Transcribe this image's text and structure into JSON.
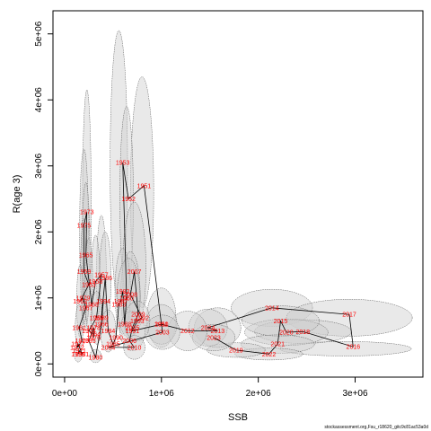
{
  "chart_data": {
    "type": "scatter",
    "title": "",
    "xlabel": "SSB",
    "ylabel": "R(age 3)",
    "xlim": [
      -120000,
      3700000
    ],
    "ylim": [
      -200000,
      5350000
    ],
    "xticks": [
      0,
      1000000,
      2000000,
      3000000
    ],
    "xtick_labels": [
      "0e+00",
      "1e+06",
      "2e+06",
      "3e+06"
    ],
    "yticks": [
      0,
      1000000,
      2000000,
      3000000,
      4000000,
      5000000
    ],
    "ytick_labels": [
      "0e+00",
      "1e+06",
      "2e+06",
      "3e+06",
      "4e+06",
      "5e+06"
    ],
    "grid": false,
    "legend": "none",
    "colors": {
      "line": "#000000",
      "label": "#ff0000",
      "ellipse_fill": "#cfcfcf",
      "ellipse_stroke": "#555555"
    },
    "points": [
      {
        "year": "1950",
        "ssb": 1000000,
        "r": 600000
      },
      {
        "year": "1951",
        "ssb": 820000,
        "r": 2700000
      },
      {
        "year": "1952",
        "ssb": 660000,
        "r": 2500000
      },
      {
        "year": "1953",
        "ssb": 600000,
        "r": 3050000
      },
      {
        "year": "1955",
        "ssb": 140000,
        "r": 150000
      },
      {
        "year": "1957",
        "ssb": 380000,
        "r": 1350000
      },
      {
        "year": "1958",
        "ssb": 320000,
        "r": 1250000
      },
      {
        "year": "1959",
        "ssb": 200000,
        "r": 1400000
      },
      {
        "year": "1960",
        "ssb": 640000,
        "r": 1000000
      },
      {
        "year": "1961",
        "ssb": 150000,
        "r": 550000
      },
      {
        "year": "1962",
        "ssb": 160000,
        "r": 950000
      },
      {
        "year": "1963",
        "ssb": 250000,
        "r": 1200000
      },
      {
        "year": "1964",
        "ssb": 300000,
        "r": 450000
      },
      {
        "year": "1965",
        "ssb": 220000,
        "r": 1650000
      },
      {
        "year": "1966",
        "ssb": 380000,
        "r": 600000
      },
      {
        "year": "1967",
        "ssb": 220000,
        "r": 850000
      },
      {
        "year": "1968",
        "ssb": 280000,
        "r": 900000
      },
      {
        "year": "1969",
        "ssb": 330000,
        "r": 700000
      },
      {
        "year": "1970",
        "ssb": 180000,
        "r": 350000
      },
      {
        "year": "1971",
        "ssb": 150000,
        "r": 200000
      },
      {
        "year": "1972",
        "ssb": 130000,
        "r": 250000
      },
      {
        "year": "1973",
        "ssb": 230000,
        "r": 2300000
      },
      {
        "year": "1974",
        "ssb": 250000,
        "r": 500000
      },
      {
        "year": "1975",
        "ssb": 200000,
        "r": 2100000
      },
      {
        "year": "1976",
        "ssb": 300000,
        "r": 400000
      },
      {
        "year": "1977",
        "ssb": 140000,
        "r": 300000
      },
      {
        "year": "1978",
        "ssb": 300000,
        "r": 550000
      },
      {
        "year": "1979",
        "ssb": 190000,
        "r": 1000000
      },
      {
        "year": "1980",
        "ssb": 320000,
        "r": 100000
      },
      {
        "year": "1981",
        "ssb": 180000,
        "r": 150000
      },
      {
        "year": "1982",
        "ssb": 600000,
        "r": 1100000
      },
      {
        "year": "1983",
        "ssb": 560000,
        "r": 900000
      },
      {
        "year": "1984",
        "ssb": 450000,
        "r": 500000
      },
      {
        "year": "1985",
        "ssb": 500000,
        "r": 300000
      },
      {
        "year": "1986",
        "ssb": 420000,
        "r": 1300000
      },
      {
        "year": "1987",
        "ssb": 580000,
        "r": 950000
      },
      {
        "year": "1988",
        "ssb": 620000,
        "r": 600000
      },
      {
        "year": "1989",
        "ssb": 380000,
        "r": 700000
      },
      {
        "year": "1990",
        "ssb": 530000,
        "r": 400000
      },
      {
        "year": "1991",
        "ssb": 700000,
        "r": 500000
      },
      {
        "year": "1992",
        "ssb": 800000,
        "r": 700000
      },
      {
        "year": "1993",
        "ssb": 750000,
        "r": 650000
      },
      {
        "year": "1994",
        "ssb": 400000,
        "r": 950000
      },
      {
        "year": "1995",
        "ssb": 250000,
        "r": 350000
      },
      {
        "year": "2003",
        "ssb": 1010000,
        "r": 480000
      },
      {
        "year": "2004",
        "ssb": 450000,
        "r": 250000
      },
      {
        "year": "2005",
        "ssb": 700000,
        "r": 550000
      },
      {
        "year": "2006",
        "ssb": 670000,
        "r": 350000
      },
      {
        "year": "2007",
        "ssb": 720000,
        "r": 1400000
      },
      {
        "year": "2008",
        "ssb": 680000,
        "r": 1050000
      },
      {
        "year": "2009",
        "ssb": 760000,
        "r": 750000
      },
      {
        "year": "2010",
        "ssb": 720000,
        "r": 250000
      },
      {
        "year": "2011",
        "ssb": 1000000,
        "r": 600000
      },
      {
        "year": "2012",
        "ssb": 1270000,
        "r": 500000
      },
      {
        "year": "2013",
        "ssb": 1580000,
        "r": 500000
      },
      {
        "year": "2014",
        "ssb": 2140000,
        "r": 850000
      },
      {
        "year": "2015",
        "ssb": 2230000,
        "r": 650000
      },
      {
        "year": "2016",
        "ssb": 2980000,
        "r": 260000
      },
      {
        "year": "2017",
        "ssb": 2940000,
        "r": 750000
      },
      {
        "year": "2018",
        "ssb": 2460000,
        "r": 490000
      },
      {
        "year": "2019",
        "ssb": 1770000,
        "r": 210000
      },
      {
        "year": "2020",
        "ssb": 2290000,
        "r": 480000
      },
      {
        "year": "2021",
        "ssb": 2200000,
        "r": 300000
      },
      {
        "year": "2022",
        "ssb": 2110000,
        "r": 150000
      },
      {
        "year": "2023",
        "ssb": 1540000,
        "r": 400000
      },
      {
        "year": "2024",
        "ssb": 1480000,
        "r": 550000
      }
    ],
    "path_order": [
      "1955",
      "1971",
      "1981",
      "1977",
      "1972",
      "1970",
      "1961",
      "1967",
      "1979",
      "1962",
      "1963",
      "1959",
      "1975",
      "1973",
      "1965",
      "1968",
      "1958",
      "1957",
      "1969",
      "1974",
      "1964",
      "1976",
      "1978",
      "1995",
      "1980",
      "1966",
      "1994",
      "1989",
      "1986",
      "1984",
      "1985",
      "1990",
      "1983",
      "1987",
      "1982",
      "1988",
      "1960",
      "1953",
      "1952",
      "1951",
      "1950",
      "1991",
      "1993",
      "1992",
      "2008",
      "2007",
      "2009",
      "2005",
      "2006",
      "2010",
      "2004",
      "2003",
      "2011",
      "2012",
      "2013",
      "2024",
      "2014",
      "2017",
      "2016",
      "2018",
      "2020",
      "2015",
      "2021",
      "2022",
      "2019",
      "2023"
    ],
    "uncertainty_ellipses": [
      {
        "year": "1953",
        "ssb": 560000,
        "r": 3000000,
        "ssb_halfwidth": 90000,
        "r_halfheight": 2050000
      },
      {
        "year": "1951",
        "ssb": 800000,
        "r": 2600000,
        "ssb_halfwidth": 120000,
        "r_halfheight": 1750000
      },
      {
        "year": "1952",
        "ssb": 640000,
        "r": 2500000,
        "ssb_halfwidth": 70000,
        "r_halfheight": 1400000
      },
      {
        "year": "1973",
        "ssb": 230000,
        "r": 2400000,
        "ssb_halfwidth": 45000,
        "r_halfheight": 1750000
      },
      {
        "year": "1975",
        "ssb": 200000,
        "r": 2000000,
        "ssb_halfwidth": 45000,
        "r_halfheight": 1250000
      },
      {
        "year": "1965",
        "ssb": 220000,
        "r": 1650000,
        "ssb_halfwidth": 40000,
        "r_halfheight": 1100000
      },
      {
        "year": "1959",
        "ssb": 200000,
        "r": 1400000,
        "ssb_halfwidth": 35000,
        "r_halfheight": 800000
      },
      {
        "year": "1957",
        "ssb": 380000,
        "r": 1350000,
        "ssb_halfwidth": 50000,
        "r_halfheight": 900000
      },
      {
        "year": "1958",
        "ssb": 320000,
        "r": 1250000,
        "ssb_halfwidth": 45000,
        "r_halfheight": 700000
      },
      {
        "year": "2007",
        "ssb": 720000,
        "r": 1450000,
        "ssb_halfwidth": 120000,
        "r_halfheight": 1000000
      },
      {
        "year": "2008",
        "ssb": 680000,
        "r": 1050000,
        "ssb_halfwidth": 100000,
        "r_halfheight": 650000
      },
      {
        "year": "1982",
        "ssb": 600000,
        "r": 1100000,
        "ssb_halfwidth": 80000,
        "r_halfheight": 650000
      },
      {
        "year": "1963",
        "ssb": 250000,
        "r": 1200000,
        "ssb_halfwidth": 40000,
        "r_halfheight": 700000
      },
      {
        "year": "1962",
        "ssb": 160000,
        "r": 950000,
        "ssb_halfwidth": 35000,
        "r_halfheight": 550000
      },
      {
        "year": "1986",
        "ssb": 420000,
        "r": 1300000,
        "ssb_halfwidth": 60000,
        "r_halfheight": 700000
      },
      {
        "year": "1960",
        "ssb": 660000,
        "r": 1000000,
        "ssb_halfwidth": 120000,
        "r_halfheight": 600000
      },
      {
        "year": "1950",
        "ssb": 1000000,
        "r": 700000,
        "ssb_halfwidth": 150000,
        "r_halfheight": 450000
      },
      {
        "year": "2014",
        "ssb": 2140000,
        "r": 850000,
        "ssb_halfwidth": 420000,
        "r_halfheight": 280000
      },
      {
        "year": "2017",
        "ssb": 2940000,
        "r": 700000,
        "ssb_halfwidth": 650000,
        "r_halfheight": 280000
      },
      {
        "year": "2016",
        "ssb": 2900000,
        "r": 230000,
        "ssb_halfwidth": 680000,
        "r_halfheight": 110000
      },
      {
        "year": "2018",
        "ssb": 2460000,
        "r": 490000,
        "ssb_halfwidth": 500000,
        "r_halfheight": 180000
      },
      {
        "year": "2020",
        "ssb": 2290000,
        "r": 480000,
        "ssb_halfwidth": 430000,
        "r_halfheight": 200000
      },
      {
        "year": "2015",
        "ssb": 2230000,
        "r": 650000,
        "ssb_halfwidth": 400000,
        "r_halfheight": 230000
      },
      {
        "year": "2021",
        "ssb": 2200000,
        "r": 300000,
        "ssb_halfwidth": 380000,
        "r_halfheight": 140000
      },
      {
        "year": "2022",
        "ssb": 2110000,
        "r": 150000,
        "ssb_halfwidth": 350000,
        "r_halfheight": 90000
      },
      {
        "year": "2019",
        "ssb": 1770000,
        "r": 210000,
        "ssb_halfwidth": 300000,
        "r_halfheight": 110000
      },
      {
        "year": "2013",
        "ssb": 1580000,
        "r": 550000,
        "ssb_halfwidth": 240000,
        "r_halfheight": 300000
      },
      {
        "year": "2024",
        "ssb": 1480000,
        "r": 550000,
        "ssb_halfwidth": 200000,
        "r_halfheight": 280000
      },
      {
        "year": "2023",
        "ssb": 1540000,
        "r": 400000,
        "ssb_halfwidth": 220000,
        "r_halfheight": 200000
      },
      {
        "year": "2012",
        "ssb": 1270000,
        "r": 500000,
        "ssb_halfwidth": 200000,
        "r_halfheight": 300000
      },
      {
        "year": "2011",
        "ssb": 1000000,
        "r": 600000,
        "ssb_halfwidth": 160000,
        "r_halfheight": 300000
      },
      {
        "year": "2003",
        "ssb": 1010000,
        "r": 480000,
        "ssb_halfwidth": 180000,
        "r_halfheight": 260000
      },
      {
        "year": "1991",
        "ssb": 700000,
        "r": 500000,
        "ssb_halfwidth": 130000,
        "r_halfheight": 300000
      },
      {
        "year": "1993",
        "ssb": 750000,
        "r": 650000,
        "ssb_halfwidth": 130000,
        "r_halfheight": 300000
      },
      {
        "year": "2010",
        "ssb": 720000,
        "r": 250000,
        "ssb_halfwidth": 110000,
        "r_halfheight": 180000
      },
      {
        "year": "1984",
        "ssb": 450000,
        "r": 500000,
        "ssb_halfwidth": 80000,
        "r_halfheight": 320000
      },
      {
        "year": "1969",
        "ssb": 330000,
        "r": 700000,
        "ssb_halfwidth": 60000,
        "r_halfheight": 400000
      },
      {
        "year": "1961",
        "ssb": 150000,
        "r": 550000,
        "ssb_halfwidth": 40000,
        "r_halfheight": 350000
      },
      {
        "year": "1955",
        "ssb": 140000,
        "r": 150000,
        "ssb_halfwidth": 40000,
        "r_halfheight": 120000
      },
      {
        "year": "1980",
        "ssb": 320000,
        "r": 120000,
        "ssb_halfwidth": 60000,
        "r_halfheight": 100000
      }
    ]
  },
  "credit": "stockassessment.org,Fsu_r18620_gitc9c81ac53a0d"
}
